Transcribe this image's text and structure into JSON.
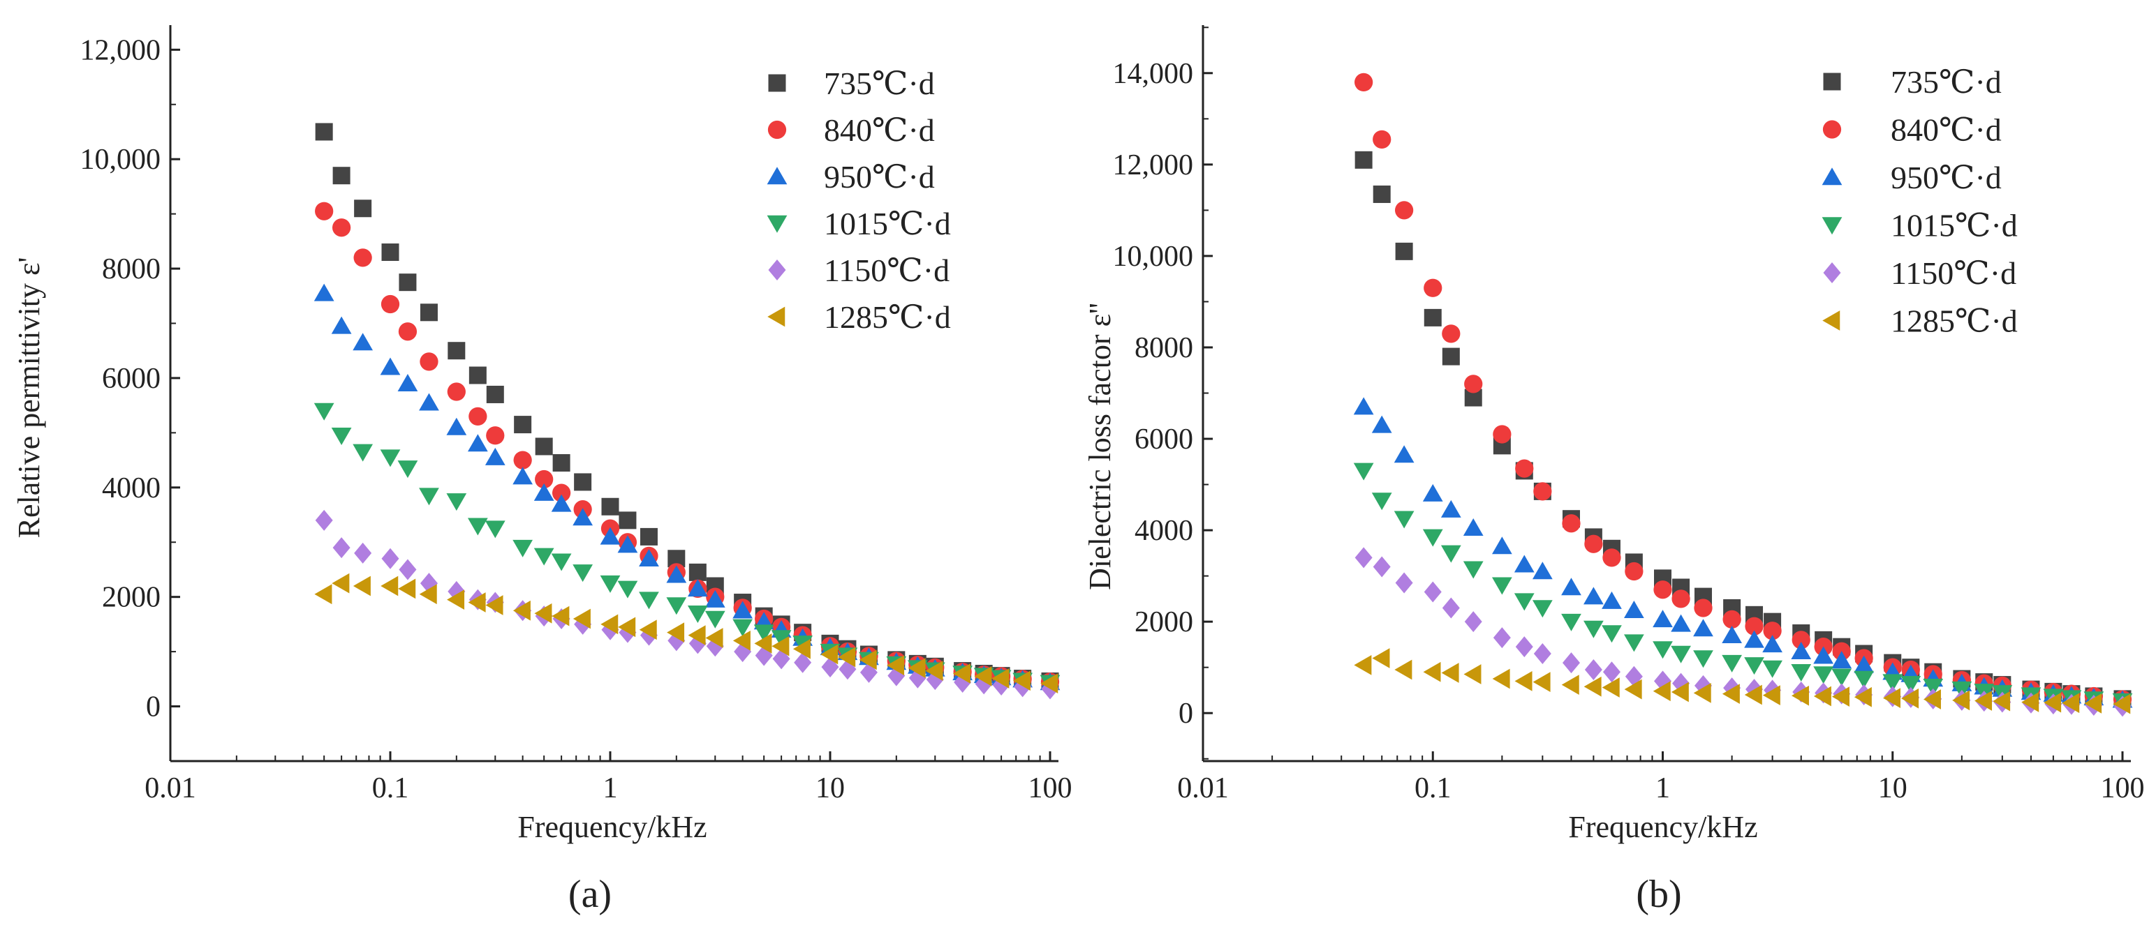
{
  "chart_data": [
    {
      "type": "scatter",
      "panel_label": "(a)",
      "xlabel": "Frequency/kHz",
      "ylabel": "Relative permittivity ε'",
      "xscale": "log",
      "xlim": [
        0.01,
        100
      ],
      "ylim": [
        -1000,
        12450
      ],
      "xticks": [
        "0.01",
        "0.1",
        "1",
        "10",
        "100"
      ],
      "yticks": [
        {
          "v": 0,
          "label": "0"
        },
        {
          "v": 2000,
          "label": "2000"
        },
        {
          "v": 4000,
          "label": "4000"
        },
        {
          "v": 6000,
          "label": "6000"
        },
        {
          "v": 8000,
          "label": "8000"
        },
        {
          "v": 10000,
          "label": "10,000"
        },
        {
          "v": 12000,
          "label": "12,000"
        }
      ],
      "legend_placement": "top-right",
      "x": [
        0.05,
        0.06,
        0.075,
        0.1,
        0.12,
        0.15,
        0.2,
        0.25,
        0.3,
        0.4,
        0.5,
        0.6,
        0.75,
        1,
        1.2,
        1.5,
        2,
        2.5,
        3,
        4,
        5,
        6,
        7.5,
        10,
        12,
        15,
        20,
        25,
        30,
        40,
        50,
        60,
        75,
        100
      ],
      "series": [
        {
          "name": "735℃·d",
          "marker": "square",
          "color": "#444444",
          "values": [
            10500,
            9700,
            9100,
            8300,
            7750,
            7200,
            6500,
            6050,
            5700,
            5150,
            4750,
            4450,
            4100,
            3650,
            3400,
            3100,
            2700,
            2450,
            2200,
            1900,
            1650,
            1500,
            1350,
            1150,
            1050,
            950,
            850,
            780,
            730,
            650,
            600,
            560,
            510,
            460
          ]
        },
        {
          "name": "840℃·d",
          "marker": "circle",
          "color": "#ee3b3b",
          "values": [
            9050,
            8750,
            8200,
            7350,
            6850,
            6300,
            5750,
            5300,
            4950,
            4500,
            4150,
            3900,
            3600,
            3250,
            3000,
            2750,
            2450,
            2150,
            2000,
            1800,
            1600,
            1450,
            1300,
            1100,
            1000,
            920,
            830,
            760,
            710,
            630,
            580,
            550,
            500,
            450
          ]
        },
        {
          "name": "950℃·d",
          "marker": "triangle-up",
          "color": "#1f6fd8",
          "values": [
            7550,
            6950,
            6650,
            6200,
            5900,
            5550,
            5100,
            4800,
            4550,
            4200,
            3900,
            3700,
            3450,
            3100,
            2950,
            2700,
            2400,
            2150,
            1950,
            1750,
            1550,
            1400,
            1250,
            1080,
            990,
            900,
            810,
            740,
            690,
            620,
            570,
            530,
            490,
            440
          ]
        },
        {
          "name": "1015℃·d",
          "marker": "triangle-down",
          "color": "#2ea866",
          "values": [
            5400,
            4950,
            4650,
            4550,
            4350,
            3850,
            3750,
            3300,
            3250,
            2900,
            2750,
            2650,
            2450,
            2250,
            2150,
            1950,
            1850,
            1700,
            1600,
            1450,
            1350,
            1250,
            1150,
            1000,
            930,
            850,
            770,
            700,
            660,
            600,
            560,
            520,
            470,
            430
          ]
        },
        {
          "name": "1150℃·d",
          "marker": "diamond",
          "color": "#b07ee0",
          "values": [
            3400,
            2900,
            2800,
            2700,
            2500,
            2250,
            2100,
            1950,
            1900,
            1750,
            1650,
            1600,
            1500,
            1400,
            1350,
            1300,
            1200,
            1150,
            1100,
            1000,
            930,
            870,
            800,
            720,
            680,
            620,
            560,
            520,
            490,
            440,
            410,
            390,
            360,
            320
          ]
        },
        {
          "name": "1285℃·d",
          "marker": "triangle-left",
          "color": "#c8970a",
          "values": [
            2050,
            2250,
            2200,
            2200,
            2150,
            2050,
            1950,
            1900,
            1850,
            1750,
            1700,
            1650,
            1600,
            1500,
            1450,
            1400,
            1350,
            1300,
            1250,
            1200,
            1150,
            1100,
            1050,
            950,
            900,
            850,
            750,
            700,
            650,
            600,
            550,
            510,
            470,
            420
          ]
        }
      ]
    },
    {
      "type": "scatter",
      "panel_label": "(b)",
      "xlabel": "Frequency/kHz",
      "ylabel": "Dielectric loss factor ε''",
      "xscale": "log",
      "xlim": [
        0.01,
        100
      ],
      "ylim": [
        -1050,
        15050
      ],
      "xticks": [
        "0.01",
        "0.1",
        "1",
        "10",
        "100"
      ],
      "yticks": [
        {
          "v": 0,
          "label": "0"
        },
        {
          "v": 2000,
          "label": "2000"
        },
        {
          "v": 4000,
          "label": "4000"
        },
        {
          "v": 6000,
          "label": "6000"
        },
        {
          "v": 8000,
          "label": "8000"
        },
        {
          "v": 10000,
          "label": "10,000"
        },
        {
          "v": 12000,
          "label": "12,000"
        },
        {
          "v": 14000,
          "label": "14,000"
        }
      ],
      "legend_placement": "top-right",
      "x": [
        0.05,
        0.06,
        0.075,
        0.1,
        0.12,
        0.15,
        0.2,
        0.25,
        0.3,
        0.4,
        0.5,
        0.6,
        0.75,
        1,
        1.2,
        1.5,
        2,
        2.5,
        3,
        4,
        5,
        6,
        7.5,
        10,
        12,
        15,
        20,
        25,
        30,
        40,
        50,
        60,
        75,
        100
      ],
      "series": [
        {
          "name": "735℃·d",
          "marker": "square",
          "color": "#444444",
          "values": [
            12100,
            11350,
            10100,
            8650,
            7800,
            6900,
            5850,
            5300,
            4850,
            4250,
            3850,
            3600,
            3300,
            2950,
            2750,
            2550,
            2300,
            2150,
            2000,
            1750,
            1600,
            1450,
            1300,
            1100,
            1000,
            900,
            750,
            680,
            620,
            520,
            470,
            420,
            370,
            310
          ]
        },
        {
          "name": "840℃·d",
          "marker": "circle",
          "color": "#ee3b3b",
          "values": [
            13800,
            12550,
            11000,
            9300,
            8300,
            7200,
            6100,
            5350,
            4850,
            4150,
            3700,
            3400,
            3100,
            2700,
            2500,
            2300,
            2050,
            1900,
            1800,
            1600,
            1450,
            1350,
            1200,
            1000,
            950,
            850,
            720,
            650,
            600,
            510,
            460,
            420,
            370,
            300
          ]
        },
        {
          "name": "950℃·d",
          "marker": "triangle-up",
          "color": "#1f6fd8",
          "values": [
            6700,
            6300,
            5650,
            4800,
            4450,
            4050,
            3650,
            3250,
            3100,
            2750,
            2550,
            2450,
            2250,
            2050,
            1950,
            1850,
            1700,
            1600,
            1500,
            1350,
            1250,
            1150,
            1050,
            900,
            850,
            750,
            650,
            580,
            530,
            460,
            420,
            380,
            340,
            290
          ]
        },
        {
          "name": "1015℃·d",
          "marker": "triangle-down",
          "color": "#2ea866",
          "values": [
            5300,
            4650,
            4250,
            3850,
            3500,
            3150,
            2800,
            2450,
            2300,
            2000,
            1850,
            1750,
            1550,
            1400,
            1300,
            1200,
            1100,
            1050,
            980,
            900,
            850,
            800,
            750,
            680,
            640,
            580,
            520,
            470,
            440,
            390,
            360,
            330,
            300,
            260
          ]
        },
        {
          "name": "1150℃·d",
          "marker": "diamond",
          "color": "#b07ee0",
          "values": [
            3400,
            3200,
            2850,
            2650,
            2300,
            2000,
            1650,
            1450,
            1300,
            1100,
            950,
            900,
            800,
            700,
            650,
            600,
            550,
            520,
            500,
            460,
            440,
            420,
            400,
            360,
            340,
            310,
            280,
            260,
            240,
            220,
            200,
            190,
            170,
            150
          ]
        },
        {
          "name": "1285℃·d",
          "marker": "triangle-left",
          "color": "#c8970a",
          "values": [
            1050,
            1200,
            950,
            900,
            880,
            850,
            750,
            700,
            680,
            620,
            580,
            560,
            520,
            480,
            460,
            440,
            420,
            400,
            390,
            380,
            370,
            360,
            350,
            330,
            320,
            300,
            280,
            270,
            260,
            240,
            230,
            220,
            210,
            200
          ]
        }
      ]
    }
  ]
}
